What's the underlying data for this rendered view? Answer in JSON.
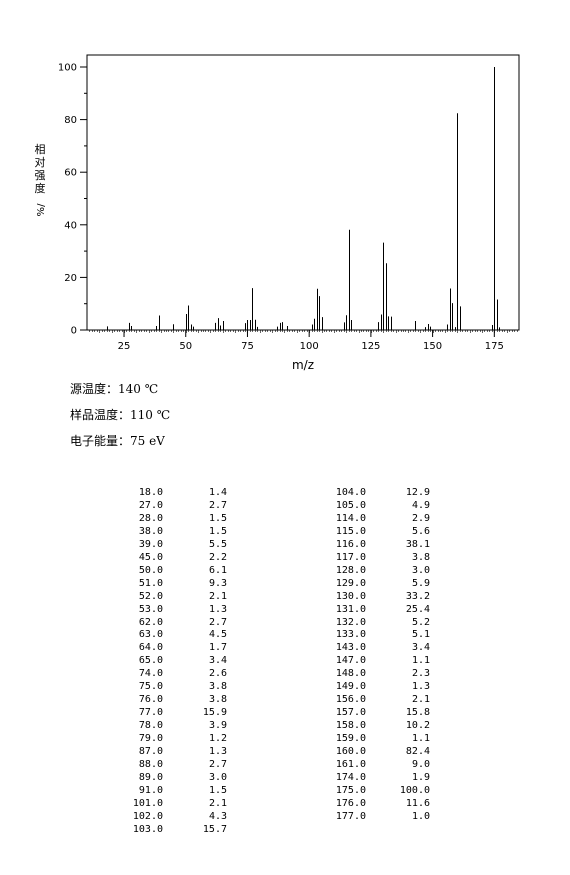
{
  "chart_data": {
    "type": "bar",
    "xlabel": "m/z",
    "ylabel_chars": [
      "相",
      "对",
      "强",
      "度"
    ],
    "ylabel_suffix": "%/",
    "xlim": [
      10,
      185
    ],
    "ylim": [
      0,
      100
    ],
    "xticks": [
      25,
      50,
      75,
      100,
      125,
      150,
      175
    ],
    "yticks": [
      0,
      20,
      40,
      60,
      80,
      100
    ],
    "peaks": [
      {
        "mz": 18.0,
        "intensity": 1.4
      },
      {
        "mz": 27.0,
        "intensity": 2.7
      },
      {
        "mz": 28.0,
        "intensity": 1.5
      },
      {
        "mz": 38.0,
        "intensity": 1.5
      },
      {
        "mz": 39.0,
        "intensity": 5.5
      },
      {
        "mz": 45.0,
        "intensity": 2.2
      },
      {
        "mz": 50.0,
        "intensity": 6.1
      },
      {
        "mz": 51.0,
        "intensity": 9.3
      },
      {
        "mz": 52.0,
        "intensity": 2.1
      },
      {
        "mz": 53.0,
        "intensity": 1.3
      },
      {
        "mz": 62.0,
        "intensity": 2.7
      },
      {
        "mz": 63.0,
        "intensity": 4.5
      },
      {
        "mz": 64.0,
        "intensity": 1.7
      },
      {
        "mz": 65.0,
        "intensity": 3.4
      },
      {
        "mz": 74.0,
        "intensity": 2.6
      },
      {
        "mz": 75.0,
        "intensity": 3.8
      },
      {
        "mz": 76.0,
        "intensity": 3.8
      },
      {
        "mz": 77.0,
        "intensity": 15.9
      },
      {
        "mz": 78.0,
        "intensity": 3.9
      },
      {
        "mz": 79.0,
        "intensity": 1.2
      },
      {
        "mz": 87.0,
        "intensity": 1.3
      },
      {
        "mz": 88.0,
        "intensity": 2.7
      },
      {
        "mz": 89.0,
        "intensity": 3.0
      },
      {
        "mz": 91.0,
        "intensity": 1.5
      },
      {
        "mz": 101.0,
        "intensity": 2.1
      },
      {
        "mz": 102.0,
        "intensity": 4.3
      },
      {
        "mz": 103.0,
        "intensity": 15.7
      },
      {
        "mz": 104.0,
        "intensity": 12.9
      },
      {
        "mz": 105.0,
        "intensity": 4.9
      },
      {
        "mz": 114.0,
        "intensity": 2.9
      },
      {
        "mz": 115.0,
        "intensity": 5.6
      },
      {
        "mz": 116.0,
        "intensity": 38.1
      },
      {
        "mz": 117.0,
        "intensity": 3.8
      },
      {
        "mz": 128.0,
        "intensity": 3.0
      },
      {
        "mz": 129.0,
        "intensity": 5.9
      },
      {
        "mz": 130.0,
        "intensity": 33.2
      },
      {
        "mz": 131.0,
        "intensity": 25.4
      },
      {
        "mz": 132.0,
        "intensity": 5.2
      },
      {
        "mz": 133.0,
        "intensity": 5.1
      },
      {
        "mz": 143.0,
        "intensity": 3.4
      },
      {
        "mz": 147.0,
        "intensity": 1.1
      },
      {
        "mz": 148.0,
        "intensity": 2.3
      },
      {
        "mz": 149.0,
        "intensity": 1.3
      },
      {
        "mz": 156.0,
        "intensity": 2.1
      },
      {
        "mz": 157.0,
        "intensity": 15.8
      },
      {
        "mz": 158.0,
        "intensity": 10.2
      },
      {
        "mz": 159.0,
        "intensity": 1.1
      },
      {
        "mz": 160.0,
        "intensity": 82.4
      },
      {
        "mz": 161.0,
        "intensity": 9.0
      },
      {
        "mz": 174.0,
        "intensity": 1.9
      },
      {
        "mz": 175.0,
        "intensity": 100.0
      },
      {
        "mz": 176.0,
        "intensity": 11.6
      },
      {
        "mz": 177.0,
        "intensity": 1.0
      }
    ]
  },
  "conditions": {
    "source_temp": "源温度：140 ℃",
    "sample_temp": "样品温度：110 ℃",
    "electron_energy": "电子能量：75 eV"
  },
  "peak_table": {
    "left": [
      [
        "18.0",
        "1.4"
      ],
      [
        "27.0",
        "2.7"
      ],
      [
        "28.0",
        "1.5"
      ],
      [
        "38.0",
        "1.5"
      ],
      [
        "39.0",
        "5.5"
      ],
      [
        "45.0",
        "2.2"
      ],
      [
        "50.0",
        "6.1"
      ],
      [
        "51.0",
        "9.3"
      ],
      [
        "52.0",
        "2.1"
      ],
      [
        "53.0",
        "1.3"
      ],
      [
        "62.0",
        "2.7"
      ],
      [
        "63.0",
        "4.5"
      ],
      [
        "64.0",
        "1.7"
      ],
      [
        "65.0",
        "3.4"
      ],
      [
        "74.0",
        "2.6"
      ],
      [
        "75.0",
        "3.8"
      ],
      [
        "76.0",
        "3.8"
      ],
      [
        "77.0",
        "15.9"
      ],
      [
        "78.0",
        "3.9"
      ],
      [
        "79.0",
        "1.2"
      ],
      [
        "87.0",
        "1.3"
      ],
      [
        "88.0",
        "2.7"
      ],
      [
        "89.0",
        "3.0"
      ],
      [
        "91.0",
        "1.5"
      ],
      [
        "101.0",
        "2.1"
      ],
      [
        "102.0",
        "4.3"
      ],
      [
        "103.0",
        "15.7"
      ]
    ],
    "right": [
      [
        "104.0",
        "12.9"
      ],
      [
        "105.0",
        "4.9"
      ],
      [
        "114.0",
        "2.9"
      ],
      [
        "115.0",
        "5.6"
      ],
      [
        "116.0",
        "38.1"
      ],
      [
        "117.0",
        "3.8"
      ],
      [
        "128.0",
        "3.0"
      ],
      [
        "129.0",
        "5.9"
      ],
      [
        "130.0",
        "33.2"
      ],
      [
        "131.0",
        "25.4"
      ],
      [
        "132.0",
        "5.2"
      ],
      [
        "133.0",
        "5.1"
      ],
      [
        "143.0",
        "3.4"
      ],
      [
        "147.0",
        "1.1"
      ],
      [
        "148.0",
        "2.3"
      ],
      [
        "149.0",
        "1.3"
      ],
      [
        "156.0",
        "2.1"
      ],
      [
        "157.0",
        "15.8"
      ],
      [
        "158.0",
        "10.2"
      ],
      [
        "159.0",
        "1.1"
      ],
      [
        "160.0",
        "82.4"
      ],
      [
        "161.0",
        "9.0"
      ],
      [
        "174.0",
        "1.9"
      ],
      [
        "175.0",
        "100.0"
      ],
      [
        "176.0",
        "11.6"
      ],
      [
        "177.0",
        "1.0"
      ]
    ]
  }
}
